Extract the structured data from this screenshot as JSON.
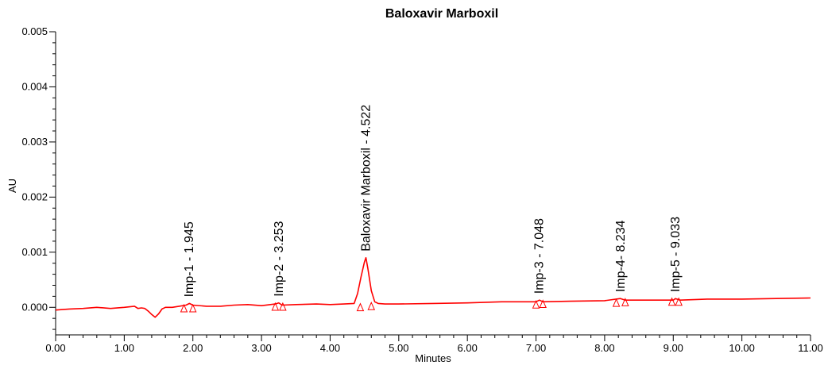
{
  "chart_data": {
    "type": "line",
    "title": "Baloxavir Marboxil",
    "xlabel": "Minutes",
    "ylabel": "AU",
    "xlim": [
      0,
      11
    ],
    "ylim": [
      -0.0005,
      0.005
    ],
    "x_ticks": [
      "0.00",
      "1.00",
      "2.00",
      "3.00",
      "4.00",
      "5.00",
      "6.00",
      "7.00",
      "8.00",
      "9.00",
      "10.00",
      "11.00"
    ],
    "y_ticks": [
      "0.000",
      "0.001",
      "0.002",
      "0.003",
      "0.004",
      "0.005"
    ],
    "grid": false,
    "line_color": "#ff0000",
    "series": [
      {
        "x": [
          0.0,
          0.2,
          0.4,
          0.6,
          0.8,
          1.0,
          1.15,
          1.2,
          1.25,
          1.3,
          1.35,
          1.4,
          1.45,
          1.5,
          1.55,
          1.6,
          1.7,
          1.8,
          1.9,
          1.95,
          2.0,
          2.2,
          2.4,
          2.6,
          2.8,
          3.0,
          3.2,
          3.25,
          3.3,
          3.5,
          3.8,
          4.0,
          4.2,
          4.35,
          4.4,
          4.45,
          4.5,
          4.522,
          4.55,
          4.6,
          4.65,
          4.7,
          4.8,
          5.0,
          5.5,
          6.0,
          6.5,
          7.0,
          7.05,
          7.1,
          7.5,
          8.0,
          8.23,
          8.3,
          8.5,
          9.0,
          9.03,
          9.1,
          9.5,
          10.0,
          10.5,
          11.0
        ],
        "y": [
          -5e-05,
          -3e-05,
          -2e-05,
          0.0,
          -2e-05,
          0.0,
          2e-05,
          -2e-05,
          -1e-05,
          -2e-05,
          -7e-05,
          -0.00013,
          -0.00018,
          -0.00012,
          -3e-05,
          0.0,
          0.0,
          2e-05,
          4e-05,
          7e-05,
          4e-05,
          2e-05,
          2e-05,
          4e-05,
          5e-05,
          3e-05,
          6e-05,
          8e-05,
          4e-05,
          5e-05,
          6e-05,
          5e-05,
          6e-05,
          7e-05,
          0.00025,
          0.00055,
          0.00082,
          0.0009,
          0.0007,
          0.0003,
          0.0001,
          7e-05,
          6e-05,
          6e-05,
          7e-05,
          8e-05,
          0.0001,
          0.0001,
          0.00013,
          0.0001,
          0.00011,
          0.00012,
          0.00016,
          0.00013,
          0.00013,
          0.00013,
          0.00016,
          0.00013,
          0.00015,
          0.00015,
          0.00016,
          0.00017
        ]
      }
    ],
    "peaks": [
      {
        "label": "Imp-1 - 1.945",
        "x": 1.945,
        "y": 7e-05
      },
      {
        "label": "Imp-2 - 3.253",
        "x": 3.253,
        "y": 8e-05
      },
      {
        "label": "Baloxavir Marboxil - 4.522",
        "x": 4.522,
        "y": 0.0009
      },
      {
        "label": "Imp-3 - 7.048",
        "x": 7.048,
        "y": 0.00013
      },
      {
        "label": "Imp-4- 8.234",
        "x": 8.234,
        "y": 0.00016
      },
      {
        "label": "Imp-5 - 9.033",
        "x": 9.033,
        "y": 0.00016
      }
    ],
    "peak_markers": [
      {
        "x": 1.87,
        "y": -4e-05
      },
      {
        "x": 2.0,
        "y": -4e-05
      },
      {
        "x": 3.2,
        "y": -1e-05
      },
      {
        "x": 3.31,
        "y": -1e-05
      },
      {
        "x": 4.44,
        "y": -2e-05
      },
      {
        "x": 4.6,
        "y": 0.0
      },
      {
        "x": 7.0,
        "y": 3e-05
      },
      {
        "x": 7.1,
        "y": 4e-05
      },
      {
        "x": 8.17,
        "y": 6e-05
      },
      {
        "x": 8.3,
        "y": 7e-05
      },
      {
        "x": 8.98,
        "y": 8e-05
      },
      {
        "x": 9.08,
        "y": 8e-05
      }
    ]
  }
}
